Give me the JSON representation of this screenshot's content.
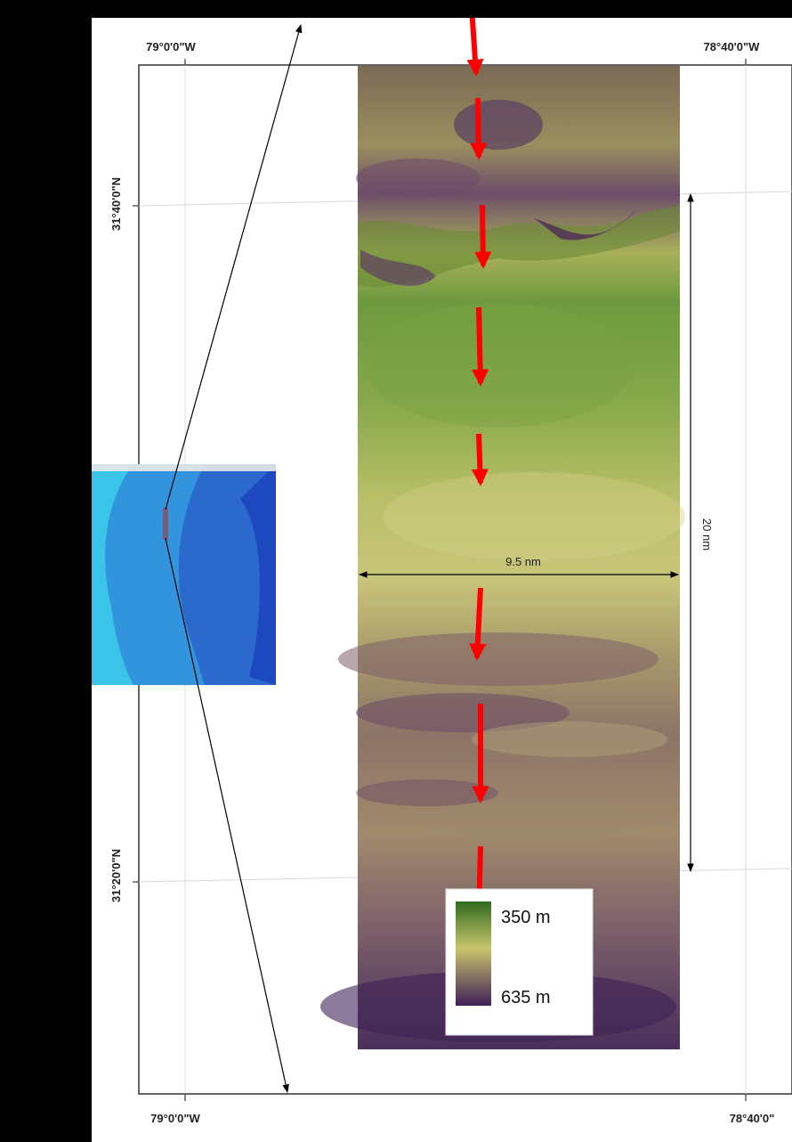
{
  "map": {
    "graticule": {
      "lon_top_left": "79°0'0\"W",
      "lon_top_right": "78°40'0\"W",
      "lon_bottom_left": "79°0'0\"W",
      "lon_bottom_right": "78°40'0\"",
      "lat_upper": "31°40'0\"N",
      "lat_lower": "31°20'0\"N"
    },
    "scale": {
      "width_label": "9.5 nm",
      "height_label": "20 nm"
    },
    "legend": {
      "shallow_label": "350 m",
      "deep_label": "635 m",
      "shallow_color": "#2f6a1e",
      "mid_color": "#c9c56d",
      "deep_color": "#3f1f57"
    },
    "flow_arrow_color": "#ff0000",
    "flow_arrow_count": 8
  }
}
